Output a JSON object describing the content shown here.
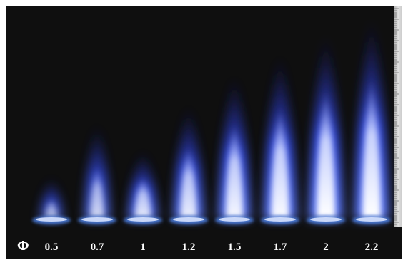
{
  "photo": {
    "background": "#0f0f0f",
    "flame_color": "#3a55ff",
    "core_color": "#ffffff",
    "burner_color": "#4a7ad8"
  },
  "phi_symbol": "Φ",
  "equals": "=",
  "flames": [
    {
      "phi": "0.5",
      "height": 0.2,
      "intensity": 0.45
    },
    {
      "phi": "0.7",
      "height": 0.46,
      "intensity": 0.6
    },
    {
      "phi": "1",
      "height": 0.33,
      "intensity": 0.78
    },
    {
      "phi": "1.2",
      "height": 0.55,
      "intensity": 0.82
    },
    {
      "phi": "1.5",
      "height": 0.7,
      "intensity": 0.9
    },
    {
      "phi": "1.7",
      "height": 0.8,
      "intensity": 0.95
    },
    {
      "phi": "2",
      "height": 0.9,
      "intensity": 1.0
    },
    {
      "phi": "2.2",
      "height": 0.98,
      "intensity": 1.0
    }
  ],
  "ruler_icon": "measuring-scale"
}
